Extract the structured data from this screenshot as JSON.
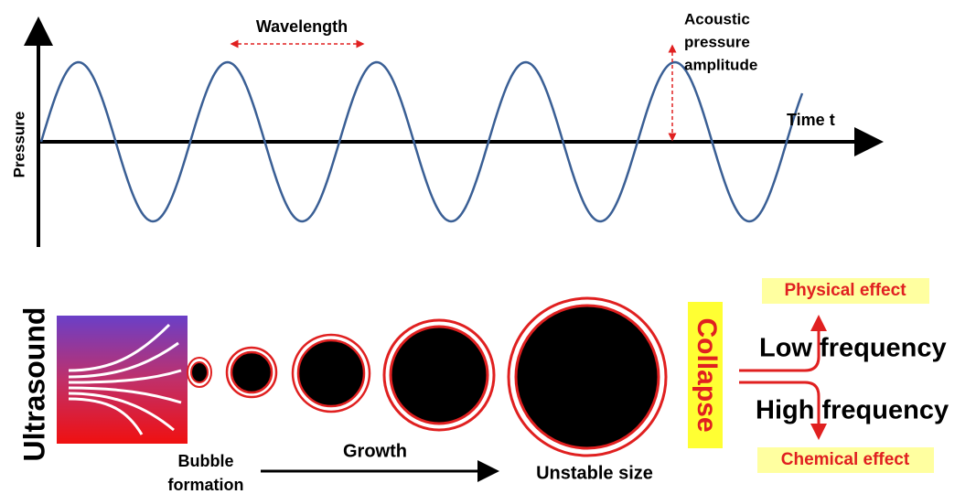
{
  "wave": {
    "y_axis_label": "Pressure",
    "x_axis_label": "Time t",
    "wavelength_label": "Wavelength",
    "amplitude_label": [
      "Acoustic",
      "pressure",
      "amplitude"
    ]
  },
  "cavitation": {
    "source_label": "Ultrasound",
    "formation_label": [
      "Bubble",
      "formation"
    ],
    "growth_label": "Growth",
    "unstable_label": "Unstable size",
    "collapse_label": "Collapse",
    "effects": [
      {
        "frequency": "Low frequency",
        "effect": "Physical effect"
      },
      {
        "frequency": "High frequency",
        "effect": "Chemical effect"
      }
    ]
  }
}
